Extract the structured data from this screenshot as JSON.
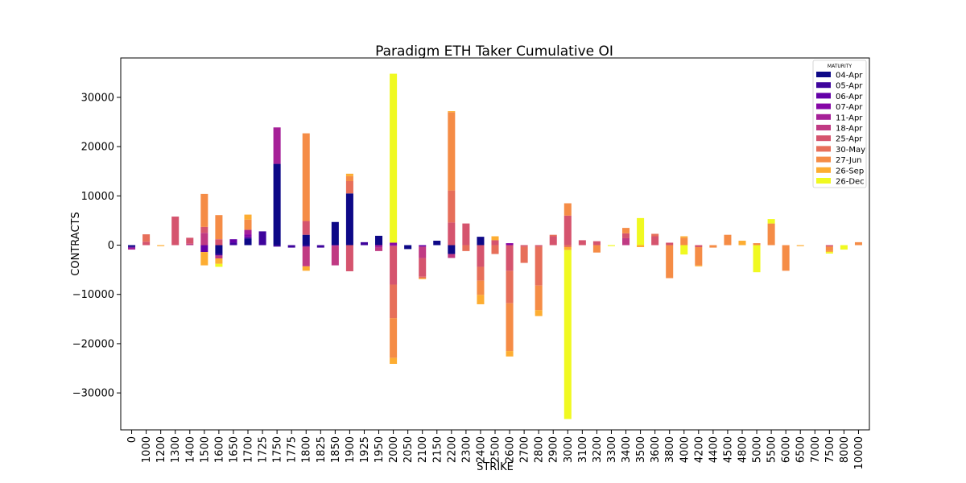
{
  "chart_data": {
    "type": "bar",
    "stacked": true,
    "title": "Paradigm ETH Taker Cumulative OI",
    "xlabel": "STRIKE",
    "ylabel": "CONTRACTS",
    "ylim": [
      -37500,
      38000
    ],
    "yticks": [
      -30000,
      -20000,
      -10000,
      0,
      10000,
      20000,
      30000
    ],
    "ytick_labels": [
      "−30000",
      "−20000",
      "−10000",
      "0",
      "10000",
      "20000",
      "30000"
    ],
    "grid": false,
    "legend": {
      "title": "MATURITY",
      "position": "top-right"
    },
    "categories": [
      "0",
      "1000",
      "1200",
      "1300",
      "1400",
      "1500",
      "1600",
      "1650",
      "1700",
      "1725",
      "1750",
      "1775",
      "1800",
      "1825",
      "1850",
      "1900",
      "1925",
      "1950",
      "2000",
      "2050",
      "2100",
      "2150",
      "2200",
      "2300",
      "2400",
      "2500",
      "2600",
      "2700",
      "2800",
      "2900",
      "3000",
      "3100",
      "3200",
      "3300",
      "3400",
      "3500",
      "3600",
      "3800",
      "4000",
      "4200",
      "4400",
      "4500",
      "4800",
      "5000",
      "5500",
      "6000",
      "6500",
      "7000",
      "7500",
      "8000",
      "10000"
    ],
    "series": [
      {
        "name": "04-Apr",
        "color": "#0d0887",
        "values": [
          -300,
          0,
          0,
          0,
          0,
          0,
          -1800,
          0,
          1300,
          0,
          16500,
          0,
          2100,
          0,
          4700,
          10500,
          0,
          1900,
          0,
          -800,
          0,
          900,
          -1800,
          0,
          1700,
          0,
          0,
          0,
          0,
          0,
          0,
          0,
          0,
          0,
          0,
          0,
          0,
          0,
          0,
          0,
          0,
          0,
          0,
          0,
          0,
          0,
          0,
          0,
          0,
          0,
          0
        ]
      },
      {
        "name": "05-Apr",
        "color": "#3e049c",
        "values": [
          -200,
          0,
          0,
          0,
          0,
          0,
          -300,
          500,
          300,
          2800,
          -300,
          -500,
          -300,
          -500,
          0,
          0,
          600,
          0,
          0,
          0,
          0,
          0,
          0,
          0,
          0,
          0,
          0,
          0,
          0,
          0,
          0,
          0,
          0,
          0,
          0,
          0,
          0,
          0,
          0,
          0,
          0,
          0,
          0,
          0,
          0,
          0,
          0,
          0,
          0,
          0,
          0
        ]
      },
      {
        "name": "06-Apr",
        "color": "#6300a7",
        "values": [
          0,
          0,
          0,
          0,
          0,
          -1400,
          0,
          700,
          0,
          0,
          0,
          0,
          0,
          0,
          0,
          0,
          0,
          0,
          0,
          0,
          -300,
          0,
          0,
          0,
          0,
          0,
          0,
          0,
          0,
          0,
          0,
          0,
          0,
          0,
          0,
          0,
          0,
          0,
          0,
          0,
          0,
          0,
          0,
          0,
          0,
          0,
          0,
          0,
          0,
          0,
          0
        ]
      },
      {
        "name": "07-Apr",
        "color": "#8606a6",
        "values": [
          0,
          0,
          0,
          0,
          0,
          0,
          0,
          0,
          600,
          0,
          0,
          0,
          0,
          0,
          0,
          0,
          0,
          0,
          500,
          0,
          0,
          0,
          0,
          0,
          0,
          0,
          400,
          0,
          0,
          0,
          0,
          0,
          0,
          0,
          0,
          0,
          0,
          0,
          0,
          0,
          0,
          0,
          0,
          0,
          0,
          0,
          0,
          0,
          0,
          0,
          0
        ]
      },
      {
        "name": "11-Apr",
        "color": "#a62098",
        "values": [
          -400,
          0,
          0,
          0,
          0,
          0,
          0,
          0,
          900,
          0,
          7400,
          0,
          0,
          0,
          -200,
          0,
          0,
          -500,
          -200,
          0,
          0,
          0,
          0,
          0,
          0,
          0,
          0,
          0,
          0,
          0,
          0,
          0,
          0,
          0,
          0,
          0,
          0,
          0,
          0,
          0,
          0,
          0,
          0,
          0,
          0,
          0,
          0,
          0,
          0,
          0,
          0
        ]
      },
      {
        "name": "18-Apr",
        "color": "#c03a83",
        "values": [
          0,
          0,
          0,
          0,
          300,
          2500,
          -600,
          0,
          0,
          0,
          0,
          0,
          -4000,
          0,
          -3900,
          0,
          0,
          -700,
          0,
          0,
          -2300,
          0,
          -800,
          0,
          0,
          0,
          0,
          0,
          0,
          0,
          0,
          0,
          0,
          0,
          1400,
          0,
          0,
          0,
          0,
          0,
          0,
          0,
          0,
          0,
          0,
          0,
          0,
          0,
          0,
          0,
          0
        ]
      },
      {
        "name": "25-Apr",
        "color": "#d5546e",
        "values": [
          0,
          700,
          0,
          5800,
          1200,
          1200,
          1200,
          0,
          0,
          0,
          0,
          0,
          2800,
          0,
          0,
          -5300,
          0,
          0,
          -7800,
          0,
          -3800,
          0,
          4600,
          4400,
          -4400,
          1000,
          -5200,
          -300,
          -300,
          1800,
          6000,
          1000,
          800,
          0,
          1000,
          0,
          1800,
          500,
          0,
          -400,
          0,
          0,
          0,
          0,
          0,
          0,
          0,
          0,
          -300,
          0,
          0
        ]
      },
      {
        "name": "30-May",
        "color": "#e76f5a",
        "values": [
          0,
          1500,
          0,
          0,
          0,
          0,
          0,
          0,
          0,
          0,
          0,
          0,
          0,
          0,
          0,
          2500,
          0,
          0,
          -6800,
          0,
          -300,
          0,
          6500,
          -1200,
          -2800,
          -1800,
          -6600,
          -3300,
          -7900,
          300,
          -400,
          0,
          0,
          0,
          0,
          0,
          500,
          0,
          0,
          0,
          0,
          0,
          0,
          0,
          0,
          0,
          0,
          0,
          0,
          0,
          0
        ]
      },
      {
        "name": "27-Jun",
        "color": "#f58c46",
        "values": [
          0,
          0,
          0,
          0,
          0,
          6700,
          4900,
          0,
          2100,
          0,
          0,
          0,
          17800,
          0,
          0,
          1000,
          0,
          0,
          -8100,
          0,
          0,
          0,
          15900,
          0,
          -2900,
          0,
          -9700,
          0,
          -5000,
          0,
          2500,
          0,
          -1500,
          0,
          1100,
          0,
          0,
          -6700,
          1500,
          -3700,
          -500,
          2100,
          0,
          400,
          4400,
          -5200,
          0,
          0,
          -900,
          0,
          600
        ]
      },
      {
        "name": "26-Sep",
        "color": "#fdad32",
        "values": [
          0,
          0,
          -200,
          0,
          0,
          -2700,
          -1100,
          0,
          1000,
          0,
          0,
          0,
          -900,
          0,
          0,
          500,
          0,
          0,
          -1200,
          0,
          -200,
          0,
          200,
          0,
          -1900,
          800,
          -1100,
          0,
          -1200,
          0,
          -600,
          0,
          0,
          0,
          0,
          -400,
          0,
          0,
          300,
          -200,
          0,
          0,
          900,
          0,
          0,
          0,
          -200,
          0,
          -200,
          0,
          0
        ]
      },
      {
        "name": "26-Dec",
        "color": "#f0f921",
        "values": [
          0,
          0,
          0,
          0,
          0,
          0,
          -600,
          0,
          0,
          0,
          0,
          0,
          0,
          0,
          0,
          0,
          0,
          0,
          34300,
          0,
          0,
          0,
          0,
          0,
          0,
          0,
          0,
          0,
          0,
          0,
          -34300,
          0,
          0,
          -200,
          0,
          5500,
          0,
          0,
          -1900,
          0,
          0,
          0,
          0,
          -5500,
          900,
          0,
          0,
          0,
          -300,
          -900,
          0
        ]
      }
    ]
  }
}
